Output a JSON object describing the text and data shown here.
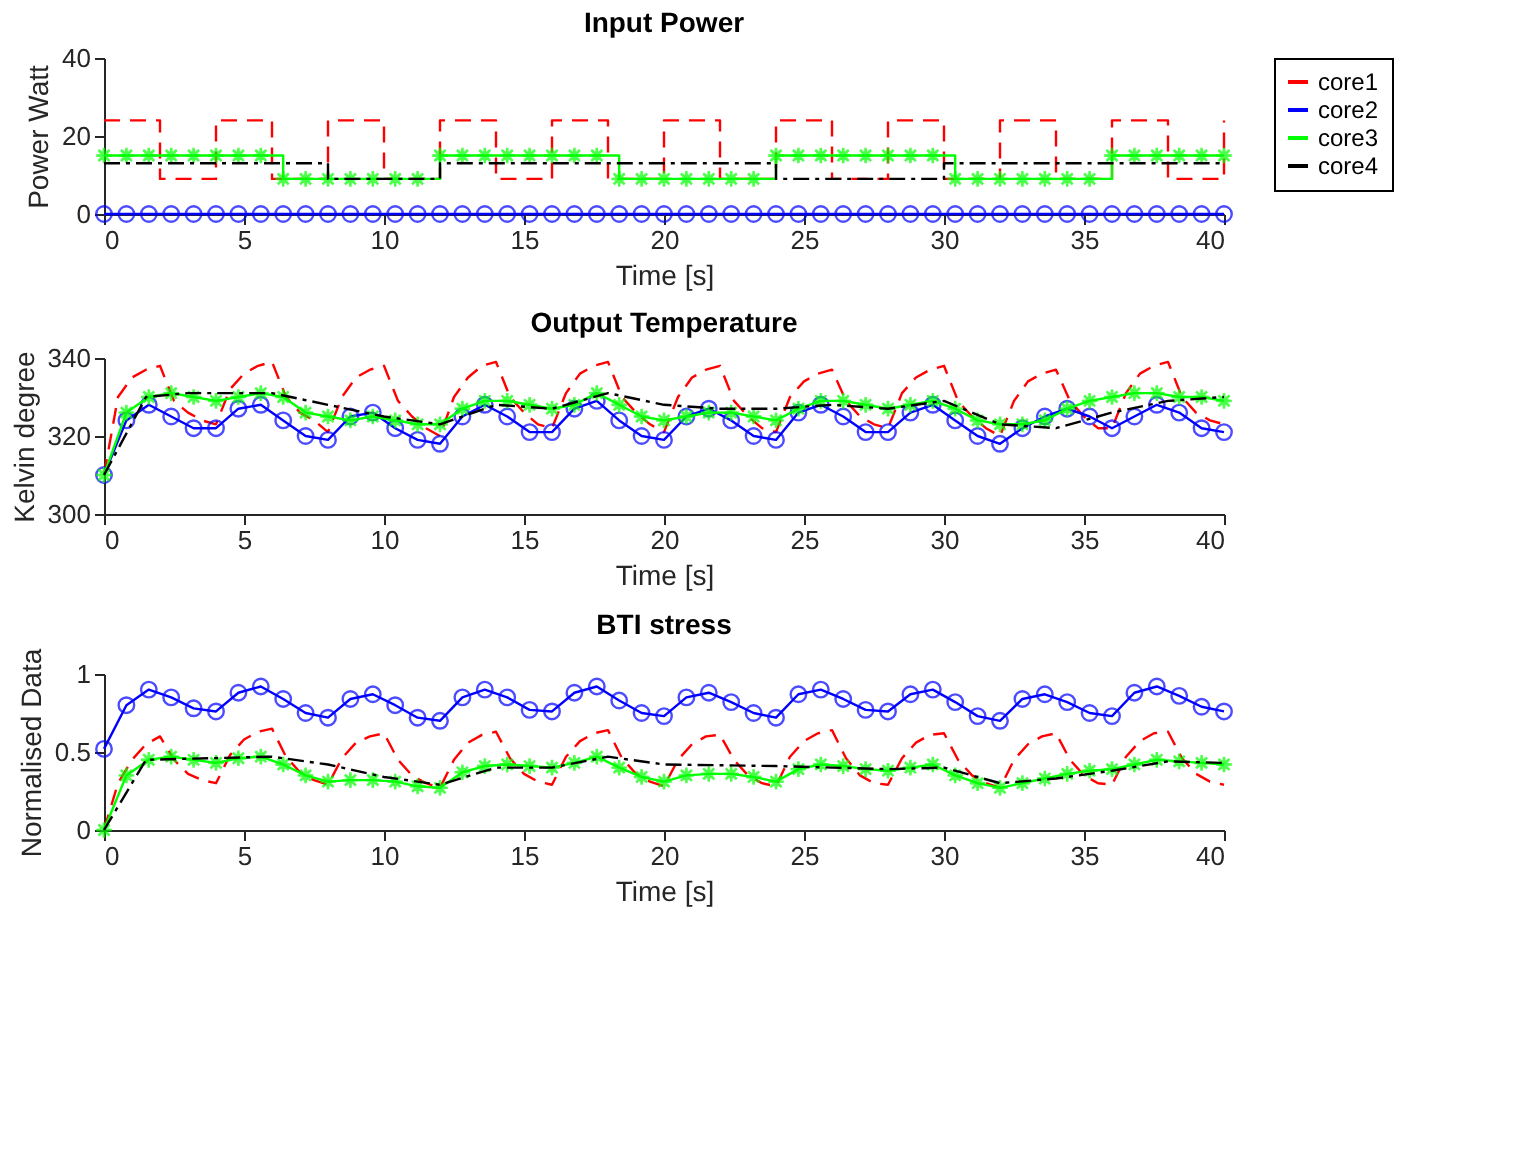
{
  "chart_data": [
    {
      "type": "line",
      "title": "Input Power",
      "xlabel": "Time [s]",
      "ylabel": "Power Watt",
      "xlim": [
        0,
        40
      ],
      "xticks": [
        0,
        5,
        10,
        15,
        20,
        25,
        30,
        35,
        40
      ],
      "ylim": [
        0,
        40
      ],
      "yticks": [
        0,
        20,
        40
      ],
      "grid": false,
      "legend": "right",
      "x": [
        0,
        0.8,
        1.6,
        2.4,
        3.2,
        4,
        4.8,
        5.6,
        6.4,
        7.2,
        8,
        8.8,
        9.6,
        10.4,
        11.2,
        12,
        12.8,
        13.6,
        14.4,
        15.2,
        16,
        16.8,
        17.6,
        18.4,
        19.2,
        20,
        20.8,
        21.6,
        22.4,
        23.2,
        24,
        24.8,
        25.6,
        26.4,
        27.2,
        28,
        28.8,
        29.6,
        30.4,
        31.2,
        32,
        32.8,
        33.6,
        34.4,
        35.2,
        36,
        36.8,
        37.6,
        38.4,
        39.2,
        40
      ],
      "series": [
        {
          "name": "core1",
          "color": "#ff0000",
          "type": "step",
          "marker": "none",
          "line_style": "dashed",
          "x": [
            0,
            2,
            4,
            6,
            8,
            10,
            12,
            14,
            16,
            18,
            20,
            22,
            24,
            26,
            28,
            30,
            32,
            34,
            36,
            38,
            40
          ],
          "values": [
            24,
            9,
            24,
            9,
            24,
            9,
            24,
            9,
            24,
            9,
            24,
            9,
            24,
            9,
            24,
            9,
            24,
            9,
            24,
            9,
            24
          ]
        },
        {
          "name": "core2",
          "color": "#0000ff",
          "type": "step",
          "marker": "circle",
          "line_style": "solid",
          "values": [
            0,
            0,
            0,
            0,
            0,
            0,
            0,
            0,
            0,
            0,
            0,
            0,
            0,
            0,
            0,
            0,
            0,
            0,
            0,
            0,
            0,
            0,
            0,
            0,
            0,
            0,
            0,
            0,
            0,
            0,
            0,
            0,
            0,
            0,
            0,
            0,
            0,
            0,
            0,
            0,
            0,
            0,
            0,
            0,
            0,
            0,
            0,
            0,
            0,
            0,
            0
          ]
        },
        {
          "name": "core3",
          "color": "#00ff00",
          "type": "step",
          "marker": "star",
          "line_style": "solid",
          "values": [
            15,
            15,
            15,
            15,
            15,
            15,
            15,
            15,
            9,
            9,
            9,
            9,
            9,
            9,
            9,
            15,
            15,
            15,
            15,
            15,
            15,
            15,
            15,
            9,
            9,
            9,
            9,
            9,
            9,
            9,
            15,
            15,
            15,
            15,
            15,
            15,
            15,
            15,
            9,
            9,
            9,
            9,
            9,
            9,
            9,
            15,
            15,
            15,
            15,
            15,
            15
          ]
        },
        {
          "name": "core4",
          "color": "#000000",
          "type": "step",
          "marker": "none",
          "line_style": "dashdot",
          "x": [
            0,
            8,
            12,
            24,
            30,
            40
          ],
          "values": [
            13,
            9,
            13,
            9,
            13,
            13
          ]
        }
      ]
    },
    {
      "type": "line",
      "title": "Output Temperature",
      "xlabel": "Time [s]",
      "ylabel": "Kelvin degree",
      "xlim": [
        0,
        40
      ],
      "xticks": [
        0,
        5,
        10,
        15,
        20,
        25,
        30,
        35,
        40
      ],
      "ylim": [
        300,
        340
      ],
      "yticks": [
        300,
        320,
        340
      ],
      "grid": false,
      "legend": "right",
      "x": [
        0,
        0.8,
        1.6,
        2.4,
        3.2,
        4,
        4.8,
        5.6,
        6.4,
        7.2,
        8,
        8.8,
        9.6,
        10.4,
        11.2,
        12,
        12.8,
        13.6,
        14.4,
        15.2,
        16,
        16.8,
        17.6,
        18.4,
        19.2,
        20,
        20.8,
        21.6,
        22.4,
        23.2,
        24,
        24.8,
        25.6,
        26.4,
        27.2,
        28,
        28.8,
        29.6,
        30.4,
        31.2,
        32,
        32.8,
        33.6,
        34.4,
        35.2,
        36,
        36.8,
        37.6,
        38.4,
        39.2,
        40
      ],
      "series": [
        {
          "name": "core1",
          "color": "#ff0000",
          "type": "line",
          "marker": "none",
          "line_style": "dashed",
          "x": [
            0,
            0.5,
            1,
            1.5,
            2,
            2.5,
            3,
            3.5,
            4,
            4.5,
            5,
            5.5,
            6,
            6.5,
            7,
            7.5,
            8,
            8.5,
            9,
            9.5,
            10,
            10.5,
            11,
            11.5,
            12,
            12.5,
            13,
            13.5,
            14,
            14.5,
            15,
            15.5,
            16,
            16.5,
            17,
            17.5,
            18,
            18.5,
            19,
            19.5,
            20,
            20.5,
            21,
            21.5,
            22,
            22.5,
            23,
            23.5,
            24,
            24.5,
            25,
            25.5,
            26,
            26.5,
            27,
            27.5,
            28,
            28.5,
            29,
            29.5,
            30,
            30.5,
            31,
            31.5,
            32,
            32.5,
            33,
            33.5,
            34,
            34.5,
            35,
            35.5,
            36,
            36.5,
            37,
            37.5,
            38,
            38.5,
            39,
            39.5,
            40
          ],
          "values": [
            310,
            330,
            335,
            337,
            338,
            329,
            326,
            324,
            323,
            332,
            336,
            338,
            339,
            330,
            326,
            324,
            321,
            330,
            335,
            337,
            338,
            329,
            325,
            322,
            320,
            330,
            335,
            338,
            339,
            330,
            326,
            323,
            322,
            331,
            336,
            338,
            339,
            330,
            326,
            323,
            321,
            330,
            335,
            337,
            338,
            329,
            325,
            322,
            321,
            330,
            334,
            336,
            337,
            329,
            325,
            323,
            322,
            331,
            335,
            337,
            338,
            329,
            325,
            322,
            320,
            329,
            334,
            336,
            337,
            329,
            325,
            322,
            322,
            331,
            336,
            338,
            339,
            330,
            326,
            324,
            323
          ]
        },
        {
          "name": "core2",
          "color": "#0000ff",
          "type": "line",
          "marker": "circle",
          "line_style": "solid",
          "values": [
            310,
            324,
            328,
            325,
            322,
            322,
            327,
            328,
            324,
            320,
            319,
            325,
            326,
            322,
            319,
            318,
            325,
            328,
            325,
            321,
            321,
            327,
            329,
            324,
            320,
            319,
            325,
            327,
            324,
            320,
            319,
            326,
            328,
            325,
            321,
            321,
            326,
            328,
            324,
            320,
            318,
            322,
            325,
            327,
            325,
            322,
            325,
            328,
            326,
            322,
            321
          ]
        },
        {
          "name": "core3",
          "color": "#00ff00",
          "type": "line",
          "marker": "star",
          "line_style": "solid",
          "values": [
            310,
            326,
            330,
            331,
            330,
            329,
            330,
            331,
            330,
            326,
            325,
            324,
            325,
            324,
            323,
            323,
            327,
            329,
            329,
            328,
            327,
            328,
            331,
            328,
            325,
            324,
            325,
            326,
            326,
            325,
            324,
            327,
            329,
            329,
            328,
            327,
            328,
            329,
            327,
            324,
            323,
            323,
            324,
            327,
            329,
            330,
            331,
            331,
            330,
            330,
            329
          ]
        },
        {
          "name": "core4",
          "color": "#000000",
          "type": "line",
          "marker": "none",
          "line_style": "dashdot",
          "x": [
            0,
            1.5,
            3,
            6,
            8,
            10,
            12,
            14,
            16,
            18,
            20,
            22,
            24,
            26,
            28,
            30,
            32,
            34,
            36,
            38,
            40
          ],
          "values": [
            310,
            330,
            331,
            331,
            328,
            325,
            323,
            328,
            327,
            331,
            328,
            327,
            327,
            328,
            327,
            329,
            323,
            322,
            326,
            329,
            330
          ]
        }
      ]
    },
    {
      "type": "line",
      "title": "BTI stress",
      "xlabel": "Time [s]",
      "ylabel": "Normalised Data",
      "xlim": [
        0,
        40
      ],
      "xticks": [
        0,
        5,
        10,
        15,
        20,
        25,
        30,
        35,
        40
      ],
      "ylim": [
        0,
        1
      ],
      "yticks": [
        0,
        0.5,
        1
      ],
      "grid": false,
      "legend": "right",
      "x": [
        0,
        0.8,
        1.6,
        2.4,
        3.2,
        4,
        4.8,
        5.6,
        6.4,
        7.2,
        8,
        8.8,
        9.6,
        10.4,
        11.2,
        12,
        12.8,
        13.6,
        14.4,
        15.2,
        16,
        16.8,
        17.6,
        18.4,
        19.2,
        20,
        20.8,
        21.6,
        22.4,
        23.2,
        24,
        24.8,
        25.6,
        26.4,
        27.2,
        28,
        28.8,
        29.6,
        30.4,
        31.2,
        32,
        32.8,
        33.6,
        34.4,
        35.2,
        36,
        36.8,
        37.6,
        38.4,
        39.2,
        40
      ],
      "series": [
        {
          "name": "core1",
          "color": "#ff0000",
          "type": "line",
          "marker": "none",
          "line_style": "dashed",
          "x": [
            0,
            0.5,
            1,
            1.5,
            2,
            2.5,
            3,
            3.5,
            4,
            4.5,
            5,
            5.5,
            6,
            6.5,
            7,
            7.5,
            8,
            8.5,
            9,
            9.5,
            10,
            10.5,
            11,
            11.5,
            12,
            12.5,
            13,
            13.5,
            14,
            14.5,
            15,
            15.5,
            16,
            16.5,
            17,
            17.5,
            18,
            18.5,
            19,
            19.5,
            20,
            20.5,
            21,
            21.5,
            22,
            22.5,
            23,
            23.5,
            24,
            24.5,
            25,
            25.5,
            26,
            26.5,
            27,
            27.5,
            28,
            28.5,
            29,
            29.5,
            30,
            30.5,
            31,
            31.5,
            32,
            32.5,
            33,
            33.5,
            34,
            34.5,
            35,
            35.5,
            36,
            36.5,
            37,
            37.5,
            38,
            38.5,
            39,
            39.5,
            40
          ],
          "values": [
            0,
            0.3,
            0.45,
            0.55,
            0.6,
            0.45,
            0.36,
            0.32,
            0.3,
            0.48,
            0.58,
            0.63,
            0.65,
            0.47,
            0.37,
            0.32,
            0.29,
            0.46,
            0.56,
            0.6,
            0.62,
            0.45,
            0.35,
            0.3,
            0.27,
            0.45,
            0.56,
            0.61,
            0.63,
            0.46,
            0.36,
            0.31,
            0.29,
            0.47,
            0.57,
            0.62,
            0.64,
            0.46,
            0.36,
            0.31,
            0.28,
            0.45,
            0.55,
            0.6,
            0.61,
            0.45,
            0.35,
            0.3,
            0.28,
            0.47,
            0.57,
            0.62,
            0.64,
            0.46,
            0.35,
            0.3,
            0.29,
            0.46,
            0.56,
            0.61,
            0.62,
            0.45,
            0.35,
            0.3,
            0.27,
            0.45,
            0.55,
            0.6,
            0.62,
            0.45,
            0.35,
            0.3,
            0.29,
            0.47,
            0.57,
            0.62,
            0.63,
            0.46,
            0.36,
            0.31,
            0.29
          ]
        },
        {
          "name": "core2",
          "color": "#0000ff",
          "type": "line",
          "marker": "circle",
          "line_style": "solid",
          "values": [
            0.52,
            0.8,
            0.9,
            0.85,
            0.78,
            0.76,
            0.88,
            0.92,
            0.84,
            0.75,
            0.72,
            0.84,
            0.87,
            0.8,
            0.72,
            0.7,
            0.85,
            0.9,
            0.85,
            0.77,
            0.76,
            0.88,
            0.92,
            0.83,
            0.75,
            0.73,
            0.85,
            0.88,
            0.82,
            0.75,
            0.72,
            0.87,
            0.9,
            0.84,
            0.77,
            0.76,
            0.87,
            0.9,
            0.82,
            0.73,
            0.7,
            0.84,
            0.87,
            0.82,
            0.75,
            0.73,
            0.88,
            0.92,
            0.86,
            0.79,
            0.76
          ]
        },
        {
          "name": "core3",
          "color": "#00ff00",
          "type": "line",
          "marker": "star",
          "line_style": "solid",
          "values": [
            0,
            0.35,
            0.45,
            0.47,
            0.45,
            0.43,
            0.46,
            0.47,
            0.42,
            0.35,
            0.31,
            0.32,
            0.32,
            0.31,
            0.28,
            0.27,
            0.37,
            0.41,
            0.42,
            0.41,
            0.4,
            0.43,
            0.47,
            0.4,
            0.34,
            0.31,
            0.35,
            0.36,
            0.36,
            0.34,
            0.31,
            0.39,
            0.42,
            0.41,
            0.39,
            0.38,
            0.4,
            0.42,
            0.35,
            0.3,
            0.27,
            0.3,
            0.33,
            0.36,
            0.38,
            0.39,
            0.42,
            0.45,
            0.44,
            0.43,
            0.42
          ]
        },
        {
          "name": "core4",
          "color": "#000000",
          "type": "line",
          "marker": "none",
          "line_style": "dashdot",
          "x": [
            0,
            1.5,
            6,
            8,
            10,
            12,
            14,
            16,
            18,
            20,
            24,
            26,
            28,
            30,
            32,
            34,
            36,
            38,
            40
          ],
          "values": [
            0,
            0.45,
            0.47,
            0.42,
            0.34,
            0.29,
            0.4,
            0.4,
            0.47,
            0.42,
            0.41,
            0.4,
            0.39,
            0.4,
            0.3,
            0.33,
            0.38,
            0.44,
            0.43
          ]
        }
      ]
    }
  ]
}
